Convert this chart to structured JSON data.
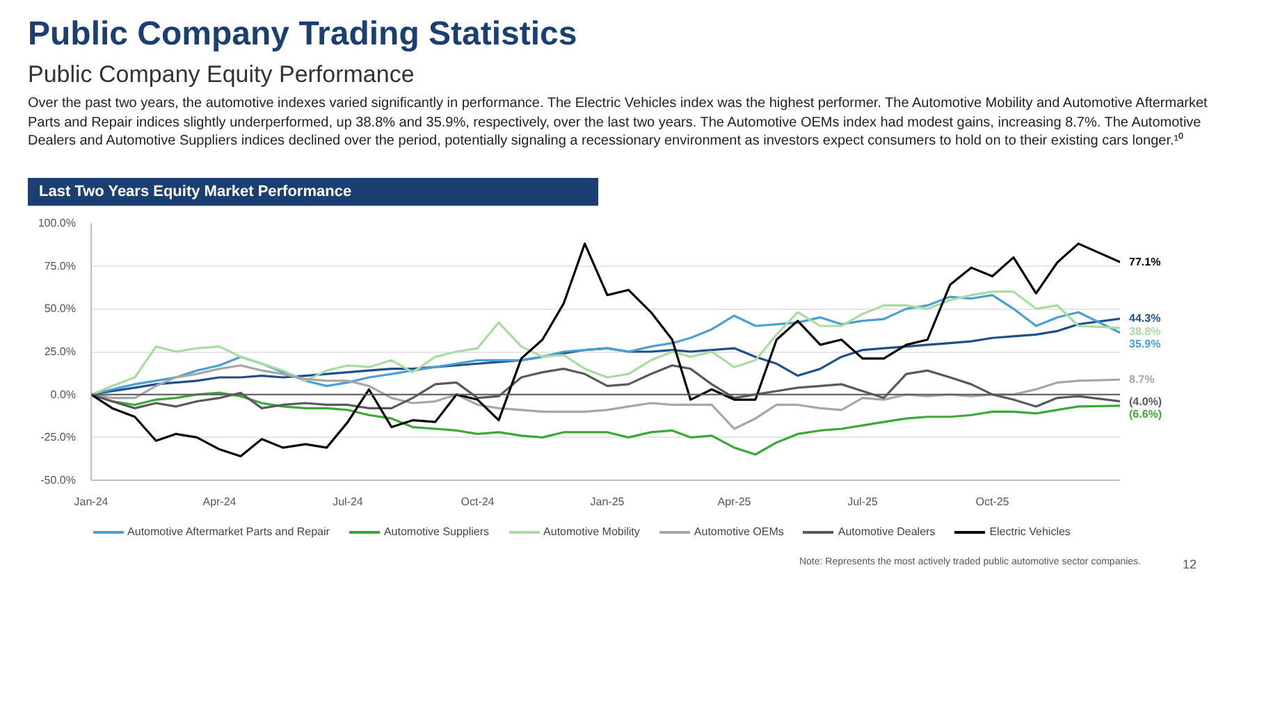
{
  "chart_data": {
    "type": "line",
    "title": "Public Company Trading Statistics",
    "subtitle": "Public Company Equity Performance",
    "x": [
      "2024-01-01",
      "2024-01-16",
      "2024-02-01",
      "2024-02-16",
      "2024-03-01",
      "2024-03-16",
      "2024-04-01",
      "2024-04-16",
      "2024-05-01",
      "2024-05-16",
      "2024-06-01",
      "2024-06-16",
      "2024-07-01",
      "2024-07-16",
      "2024-08-01",
      "2024-08-16",
      "2024-09-01",
      "2024-09-16",
      "2024-10-01",
      "2024-10-16",
      "2024-11-01",
      "2024-11-16",
      "2024-12-01",
      "2024-12-16",
      "2025-01-01",
      "2025-01-16",
      "2025-02-01",
      "2025-02-16",
      "2025-03-01",
      "2025-03-16",
      "2025-04-01",
      "2025-04-16",
      "2025-05-01",
      "2025-05-16",
      "2025-06-01",
      "2025-06-16",
      "2025-07-01",
      "2025-07-16",
      "2025-08-01",
      "2025-08-16",
      "2025-09-01",
      "2025-09-16",
      "2025-10-01",
      "2025-10-16",
      "2025-11-01",
      "2025-11-16",
      "2025-12-01",
      "2025-12-31"
    ],
    "series": [
      {
        "color": "#1f4e8c",
        "values": [
          0,
          2,
          4,
          6,
          7,
          8,
          10,
          10,
          11,
          10,
          11,
          12,
          13,
          14,
          15,
          15,
          16,
          17,
          18,
          19,
          20,
          22,
          24,
          26,
          27,
          25,
          25,
          26,
          25,
          26,
          27,
          22,
          18,
          11,
          15,
          22,
          26,
          27,
          28,
          29,
          30,
          31,
          33,
          34,
          35,
          37,
          41,
          44.3
        ]
      },
      {
        "name": "Automotive Aftermarket Parts and Repair",
        "color": "#4a9fd6",
        "values": [
          0,
          3,
          6,
          8,
          10,
          14,
          17,
          22,
          18,
          13,
          8,
          5,
          7,
          10,
          12,
          14,
          16,
          18,
          20,
          20,
          20,
          22,
          25,
          26,
          27,
          25,
          28,
          30,
          33,
          38,
          46,
          40,
          41,
          42,
          45,
          41,
          43,
          44,
          50,
          52,
          57,
          56,
          58,
          50,
          40,
          45,
          48,
          35.9
        ]
      },
      {
        "name": "Automotive Suppliers",
        "color": "#3aaa35",
        "values": [
          0,
          -4,
          -6,
          -3,
          -2,
          0,
          1,
          -1,
          -5,
          -7,
          -8,
          -8,
          -9,
          -12,
          -14,
          -19,
          -20,
          -21,
          -23,
          -22,
          -24,
          -25,
          -22,
          -22,
          -22,
          -25,
          -22,
          -21,
          -25,
          -24,
          -31,
          -35,
          -28,
          -23,
          -21,
          -20,
          -18,
          -16,
          -14,
          -13,
          -13,
          -12,
          -10,
          -10,
          -11,
          -9,
          -7,
          -6.6
        ]
      },
      {
        "name": "Automotive Mobility",
        "color": "#a8dca0",
        "values": [
          0,
          5,
          10,
          28,
          25,
          27,
          28,
          22,
          18,
          14,
          8,
          14,
          17,
          16,
          20,
          13,
          22,
          25,
          27,
          42,
          28,
          22,
          23,
          15,
          10,
          12,
          20,
          25,
          22,
          25,
          16,
          20,
          35,
          48,
          40,
          40,
          47,
          52,
          52,
          50,
          55,
          58,
          60,
          60,
          50,
          52,
          40,
          38.8
        ]
      },
      {
        "name": "Automotive OEMs",
        "color": "#a6a6a6",
        "values": [
          0,
          -2,
          -2,
          5,
          10,
          12,
          15,
          17,
          14,
          12,
          9,
          8,
          8,
          5,
          -2,
          -5,
          -4,
          0,
          -6,
          -8,
          -9,
          -10,
          -10,
          -10,
          -9,
          -7,
          -5,
          -6,
          -6,
          -6,
          -20,
          -14,
          -6,
          -6,
          -8,
          -9,
          -2,
          -3,
          0,
          -1,
          0,
          -1,
          0,
          0,
          3,
          7,
          8,
          8.7
        ]
      },
      {
        "name": "Automotive Dealers",
        "color": "#595959",
        "values": [
          0,
          -4,
          -8,
          -5,
          -7,
          -4,
          -2,
          1,
          -8,
          -6,
          -5,
          -6,
          -6,
          -8,
          -8,
          -2,
          6,
          7,
          -2,
          -1,
          10,
          13,
          15,
          12,
          5,
          6,
          12,
          17,
          15,
          6,
          -2,
          0,
          2,
          4,
          5,
          6,
          2,
          -2,
          12,
          14,
          10,
          6,
          0,
          -3,
          -7,
          -2,
          -1,
          -4.0
        ]
      },
      {
        "name": "Electric Vehicles",
        "color": "#000000",
        "values": [
          0,
          -8,
          -13,
          -27,
          -23,
          -25,
          -32,
          -36,
          -26,
          -31,
          -29,
          -31,
          -16,
          3,
          -19,
          -15,
          -16,
          0,
          -3,
          -15,
          21,
          32,
          53,
          88,
          58,
          61,
          48,
          32,
          -3,
          3,
          -3,
          -3,
          32,
          43,
          29,
          32,
          21,
          21,
          29,
          32,
          64,
          74,
          69,
          80,
          59,
          77,
          88,
          77.1
        ]
      }
    ],
    "xlim": [
      "2024-01-01",
      "2025-12-31"
    ],
    "xticks": [
      {
        "value": "2024-01-01",
        "label": "Jan-24"
      },
      {
        "value": "2024-04-01",
        "label": "Apr-24"
      },
      {
        "value": "2024-07-01",
        "label": "Jul-24"
      },
      {
        "value": "2024-10-01",
        "label": "Oct-24"
      },
      {
        "value": "2025-01-01",
        "label": "Jan-25"
      },
      {
        "value": "2025-04-01",
        "label": "Apr-25"
      },
      {
        "value": "2025-07-01",
        "label": "Jul-25"
      },
      {
        "value": "2025-10-01",
        "label": "Oct-25"
      }
    ],
    "ylim": [
      -50,
      100
    ],
    "yticks": [
      {
        "value": -50,
        "label": "-50.0%"
      },
      {
        "value": -25,
        "label": "-25.0%"
      },
      {
        "value": 0,
        "label": "0.0%"
      },
      {
        "value": 25,
        "label": "25.0%"
      },
      {
        "value": 50,
        "label": "50.0%"
      },
      {
        "value": 75,
        "label": "75.0%"
      },
      {
        "value": 100,
        "label": "100.0%"
      }
    ],
    "ref_lines": [
      {
        "axis": "y",
        "value": 0,
        "color": "#595959"
      }
    ],
    "grid": "y",
    "legend": "bottom",
    "annotations": [
      "Over the past two years, the automotive indexes varied significantly in performance. The Electric Vehicles index was the highest performer. The Automotive Mobility and Automotive Aftermarket Parts and Repair indices slightly underperformed, up 38.8% and 35.9%, respectively, over the last two years. The Automotive OEMs index had modest gains, increasing 8.7%. The Automotive Dealers and Automotive Suppliers indices declined over the period, potentially signaling a recessionary environment as investors expect consumers to hold on to their existing cars longer.¹⁰",
      "Last Two Years Equity Market Performance",
      "Note: Represents the most actively traded public automotive sector companies.",
      "12",
      {
        "text": "77.1%",
        "x": "2025-12-31",
        "y": 77.1
      },
      {
        "text": "44.3%",
        "x": "2025-12-31",
        "y": 44.3
      },
      {
        "text": "38.8%",
        "x": "2025-12-31",
        "y": 38.8
      },
      {
        "text": "35.9%",
        "x": "2025-12-31",
        "y": 35.9
      },
      {
        "text": "8.7%",
        "x": "2025-12-31",
        "y": 8.7
      },
      {
        "text": "(4.0%)",
        "x": "2025-12-31",
        "y": -4.0
      },
      {
        "text": "(6.6%)",
        "x": "2025-12-31",
        "y": -6.6
      }
    ]
  }
}
